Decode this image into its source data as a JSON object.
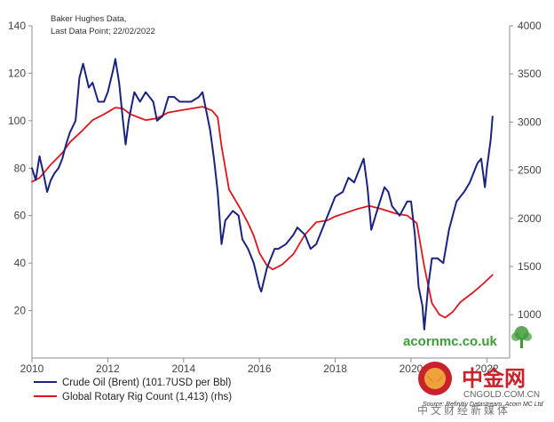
{
  "chart_data": {
    "type": "line",
    "annotation": [
      "Baker Hughes Data,",
      "Last Data Point; 22/02/2022"
    ],
    "x_ticks": [
      "2010",
      "2012",
      "2014",
      "2016",
      "2018",
      "2020",
      "2022"
    ],
    "xlim": [
      2010,
      2022.6
    ],
    "y_left": {
      "ticks": [
        "20",
        "40",
        "60",
        "80",
        "100",
        "120",
        "140"
      ],
      "lim": [
        0,
        140
      ]
    },
    "y_right": {
      "ticks": [
        "1000",
        "1500",
        "2000",
        "2500",
        "3000",
        "3500",
        "4000"
      ],
      "lim": [
        550,
        4000
      ]
    },
    "grid": false,
    "legend_position": "bottom-left",
    "series": [
      {
        "name": "Crude Oil (Brent) (101.7USD per Bbl)",
        "axis": "left",
        "color": "#1a237e",
        "points": [
          [
            2010.0,
            80
          ],
          [
            2010.1,
            75
          ],
          [
            2010.2,
            85
          ],
          [
            2010.3,
            78
          ],
          [
            2010.4,
            70
          ],
          [
            2010.5,
            75
          ],
          [
            2010.6,
            78
          ],
          [
            2010.7,
            80
          ],
          [
            2010.8,
            84
          ],
          [
            2010.9,
            90
          ],
          [
            2011.0,
            95
          ],
          [
            2011.15,
            100
          ],
          [
            2011.25,
            118
          ],
          [
            2011.35,
            124
          ],
          [
            2011.5,
            114
          ],
          [
            2011.6,
            116
          ],
          [
            2011.75,
            108
          ],
          [
            2011.9,
            108
          ],
          [
            2012.0,
            112
          ],
          [
            2012.15,
            122
          ],
          [
            2012.2,
            126
          ],
          [
            2012.3,
            116
          ],
          [
            2012.4,
            100
          ],
          [
            2012.47,
            90
          ],
          [
            2012.55,
            100
          ],
          [
            2012.7,
            112
          ],
          [
            2012.85,
            108
          ],
          [
            2013.0,
            112
          ],
          [
            2013.2,
            108
          ],
          [
            2013.3,
            100
          ],
          [
            2013.45,
            102
          ],
          [
            2013.6,
            110
          ],
          [
            2013.75,
            110
          ],
          [
            2013.9,
            108
          ],
          [
            2014.0,
            108
          ],
          [
            2014.2,
            108
          ],
          [
            2014.4,
            110
          ],
          [
            2014.5,
            112
          ],
          [
            2014.6,
            104
          ],
          [
            2014.7,
            96
          ],
          [
            2014.8,
            84
          ],
          [
            2014.9,
            70
          ],
          [
            2015.0,
            48
          ],
          [
            2015.1,
            58
          ],
          [
            2015.3,
            62
          ],
          [
            2015.45,
            60
          ],
          [
            2015.55,
            50
          ],
          [
            2015.7,
            46
          ],
          [
            2015.85,
            40
          ],
          [
            2016.0,
            30
          ],
          [
            2016.05,
            28
          ],
          [
            2016.2,
            38
          ],
          [
            2016.4,
            46
          ],
          [
            2016.5,
            46
          ],
          [
            2016.7,
            48
          ],
          [
            2016.9,
            52
          ],
          [
            2017.0,
            55
          ],
          [
            2017.2,
            52
          ],
          [
            2017.35,
            46
          ],
          [
            2017.5,
            48
          ],
          [
            2017.7,
            56
          ],
          [
            2017.85,
            62
          ],
          [
            2018.0,
            68
          ],
          [
            2018.2,
            70
          ],
          [
            2018.35,
            76
          ],
          [
            2018.5,
            74
          ],
          [
            2018.65,
            80
          ],
          [
            2018.75,
            84
          ],
          [
            2018.85,
            72
          ],
          [
            2018.95,
            54
          ],
          [
            2019.1,
            62
          ],
          [
            2019.3,
            72
          ],
          [
            2019.4,
            70
          ],
          [
            2019.5,
            64
          ],
          [
            2019.7,
            60
          ],
          [
            2019.9,
            66
          ],
          [
            2020.0,
            66
          ],
          [
            2020.1,
            52
          ],
          [
            2020.2,
            30
          ],
          [
            2020.3,
            22
          ],
          [
            2020.35,
            12
          ],
          [
            2020.45,
            30
          ],
          [
            2020.55,
            42
          ],
          [
            2020.7,
            42
          ],
          [
            2020.85,
            40
          ],
          [
            2021.0,
            54
          ],
          [
            2021.2,
            66
          ],
          [
            2021.4,
            70
          ],
          [
            2021.55,
            74
          ],
          [
            2021.75,
            82
          ],
          [
            2021.85,
            84
          ],
          [
            2021.95,
            72
          ],
          [
            2022.0,
            80
          ],
          [
            2022.1,
            92
          ],
          [
            2022.15,
            101.7
          ]
        ]
      },
      {
        "name": "Global Rotary Rig Count (1,413) (rhs)",
        "axis": "right",
        "color": "#e0141e",
        "points": [
          [
            2010.0,
            2380
          ],
          [
            2010.2,
            2420
          ],
          [
            2010.5,
            2560
          ],
          [
            2010.8,
            2680
          ],
          [
            2011.0,
            2790
          ],
          [
            2011.3,
            2900
          ],
          [
            2011.6,
            3020
          ],
          [
            2011.9,
            3080
          ],
          [
            2012.2,
            3150
          ],
          [
            2012.4,
            3140
          ],
          [
            2012.6,
            3080
          ],
          [
            2012.8,
            3050
          ],
          [
            2013.0,
            3020
          ],
          [
            2013.3,
            3040
          ],
          [
            2013.6,
            3100
          ],
          [
            2013.9,
            3120
          ],
          [
            2014.2,
            3140
          ],
          [
            2014.5,
            3160
          ],
          [
            2014.75,
            3120
          ],
          [
            2014.9,
            3050
          ],
          [
            2015.0,
            2750
          ],
          [
            2015.2,
            2300
          ],
          [
            2015.5,
            2100
          ],
          [
            2015.7,
            1950
          ],
          [
            2015.85,
            1820
          ],
          [
            2016.0,
            1640
          ],
          [
            2016.2,
            1510
          ],
          [
            2016.35,
            1470
          ],
          [
            2016.6,
            1520
          ],
          [
            2016.9,
            1630
          ],
          [
            2017.2,
            1830
          ],
          [
            2017.5,
            1960
          ],
          [
            2017.8,
            1980
          ],
          [
            2018.0,
            2020
          ],
          [
            2018.3,
            2060
          ],
          [
            2018.6,
            2100
          ],
          [
            2018.9,
            2130
          ],
          [
            2019.2,
            2100
          ],
          [
            2019.6,
            2050
          ],
          [
            2019.9,
            2030
          ],
          [
            2020.15,
            1950
          ],
          [
            2020.35,
            1500
          ],
          [
            2020.55,
            1120
          ],
          [
            2020.75,
            1000
          ],
          [
            2020.9,
            970
          ],
          [
            2021.1,
            1030
          ],
          [
            2021.3,
            1130
          ],
          [
            2021.6,
            1220
          ],
          [
            2021.9,
            1320
          ],
          [
            2022.15,
            1413
          ]
        ]
      }
    ]
  },
  "branding": {
    "logo_text": "acornmc.co.uk",
    "source": "Source: Refinitiv Datastream, Acorn MC Ltd",
    "watermark_cn": "中金网",
    "watermark_url": "CNGOLD.COM.CN",
    "watermark_sub": "中文财经新媒体",
    "logo_color": "#3f9a3a",
    "watermark_color": "#c8232a"
  }
}
